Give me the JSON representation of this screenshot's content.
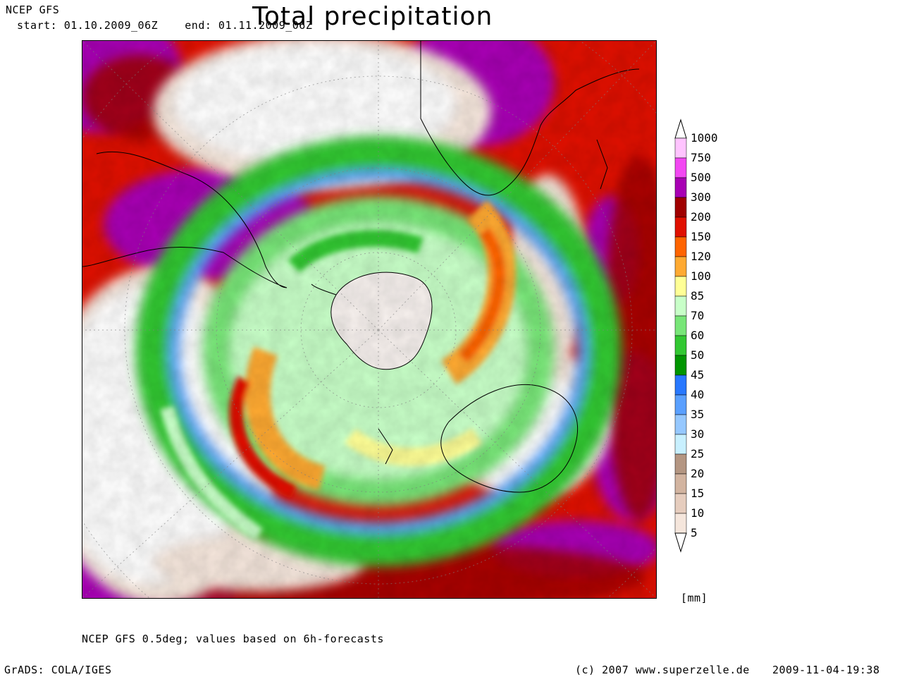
{
  "header": {
    "model": "NCEP GFS",
    "period": "start: 01.10.2009_06Z    end: 01.11.2009_06Z",
    "title": "Total precipitation"
  },
  "map": {
    "projection": "polar-stereographic-south",
    "center": "Antarctica",
    "features": [
      "South America",
      "Africa",
      "Australia",
      "New Zealand",
      "Antarctica"
    ]
  },
  "legend": {
    "unit": "[mm]",
    "levels": [
      "1000",
      "750",
      "500",
      "300",
      "200",
      "150",
      "120",
      "100",
      "85",
      "70",
      "60",
      "50",
      "45",
      "40",
      "35",
      "30",
      "25",
      "20",
      "15",
      "10",
      "5"
    ],
    "colors": [
      "#ffc4ff",
      "#f248f2",
      "#a800b4",
      "#a00000",
      "#e01000",
      "#ff6400",
      "#ffaa32",
      "#ffff96",
      "#c8ffc8",
      "#78e678",
      "#32c832",
      "#009600",
      "#2878ff",
      "#5aa0ff",
      "#96c8ff",
      "#c8f0ff",
      "#b49682",
      "#d2b4a0",
      "#e6cdbe",
      "#f5e6dc"
    ]
  },
  "footer": {
    "note": "NCEP GFS 0.5deg; values based on 6h-forecasts",
    "grads": "GrADS: COLA/IGES",
    "copyright": "(c) 2007 www.superzelle.de",
    "timestamp": "2009-11-04-19:38"
  }
}
